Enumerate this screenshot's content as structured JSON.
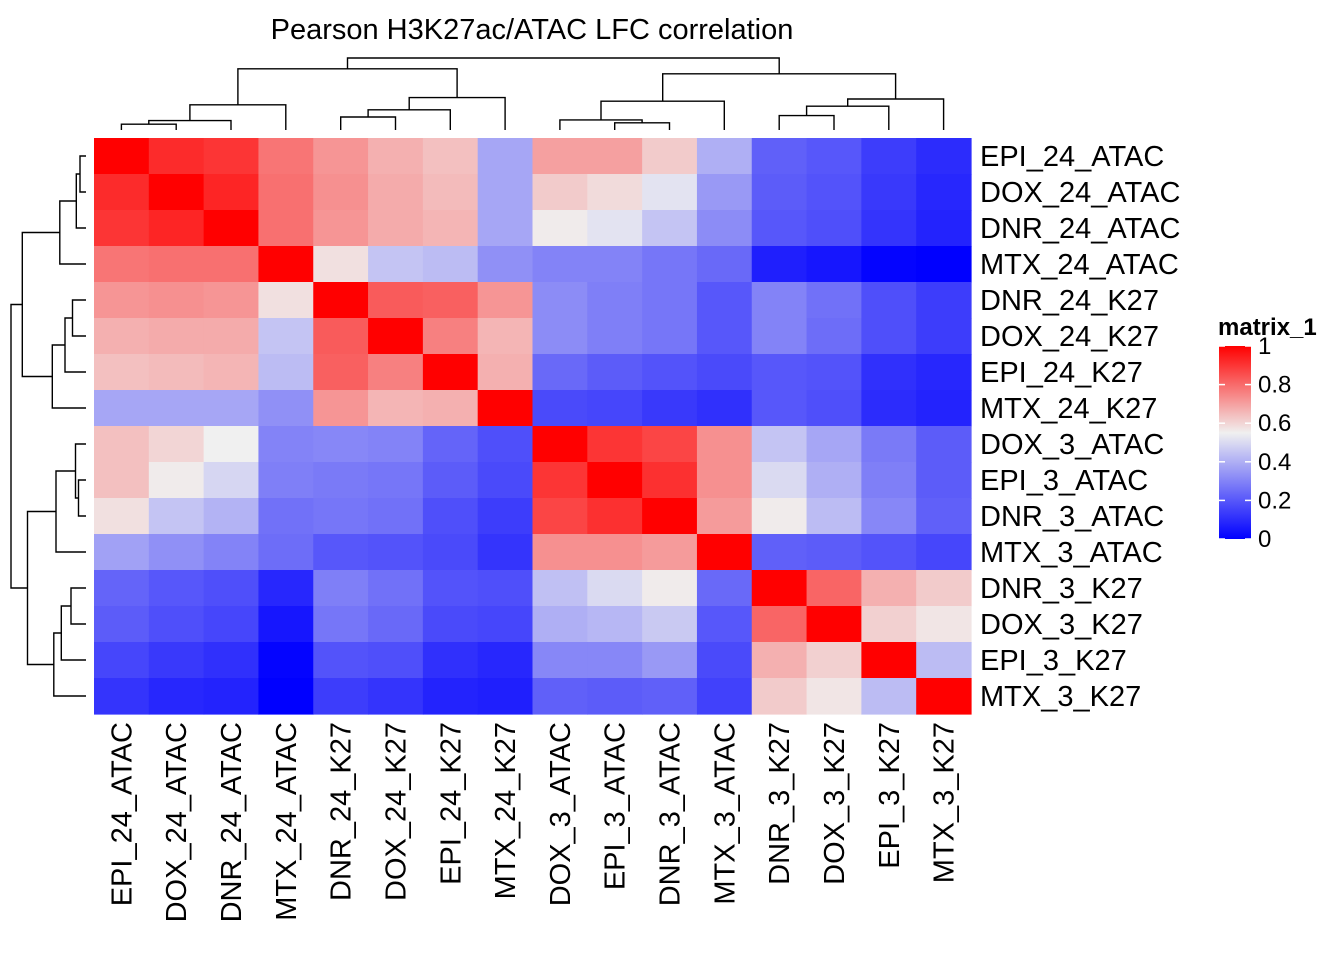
{
  "chart_data": {
    "type": "heatmap",
    "title": "Pearson H3K27ac/ATAC LFC correlation",
    "rows": [
      "EPI_24_ATAC",
      "DOX_24_ATAC",
      "DNR_24_ATAC",
      "MTX_24_ATAC",
      "DNR_24_K27",
      "DOX_24_K27",
      "EPI_24_K27",
      "MTX_24_K27",
      "DOX_3_ATAC",
      "EPI_3_ATAC",
      "DNR_3_ATAC",
      "MTX_3_ATAC",
      "DNR_3_K27",
      "DOX_3_K27",
      "EPI_3_K27",
      "MTX_3_K27"
    ],
    "columns": [
      "EPI_24_ATAC",
      "DOX_24_ATAC",
      "DNR_24_ATAC",
      "MTX_24_ATAC",
      "DNR_24_K27",
      "DOX_24_K27",
      "EPI_24_K27",
      "MTX_24_K27",
      "DOX_3_ATAC",
      "EPI_3_ATAC",
      "DNR_3_ATAC",
      "MTX_3_ATAC",
      "DNR_3_K27",
      "DOX_3_K27",
      "EPI_3_K27",
      "MTX_3_K27"
    ],
    "values": [
      [
        1.0,
        0.92,
        0.9,
        0.78,
        0.72,
        0.67,
        0.64,
        0.38,
        0.7,
        0.7,
        0.62,
        0.4,
        0.22,
        0.2,
        0.14,
        0.1
      ],
      [
        0.92,
        1.0,
        0.93,
        0.79,
        0.73,
        0.68,
        0.65,
        0.38,
        0.62,
        0.59,
        0.52,
        0.35,
        0.21,
        0.19,
        0.13,
        0.09
      ],
      [
        0.9,
        0.93,
        1.0,
        0.79,
        0.72,
        0.68,
        0.66,
        0.38,
        0.56,
        0.52,
        0.45,
        0.32,
        0.2,
        0.18,
        0.12,
        0.08
      ],
      [
        0.78,
        0.79,
        0.79,
        1.0,
        0.58,
        0.45,
        0.43,
        0.33,
        0.3,
        0.3,
        0.27,
        0.24,
        0.07,
        0.05,
        0.01,
        0.0
      ],
      [
        0.72,
        0.73,
        0.72,
        0.58,
        1.0,
        0.83,
        0.82,
        0.72,
        0.32,
        0.29,
        0.27,
        0.2,
        0.3,
        0.26,
        0.18,
        0.14
      ],
      [
        0.67,
        0.68,
        0.68,
        0.45,
        0.83,
        1.0,
        0.76,
        0.66,
        0.32,
        0.29,
        0.27,
        0.2,
        0.3,
        0.25,
        0.18,
        0.14
      ],
      [
        0.64,
        0.65,
        0.66,
        0.43,
        0.82,
        0.76,
        1.0,
        0.67,
        0.24,
        0.21,
        0.19,
        0.17,
        0.2,
        0.19,
        0.11,
        0.09
      ],
      [
        0.38,
        0.38,
        0.38,
        0.33,
        0.72,
        0.66,
        0.67,
        1.0,
        0.17,
        0.16,
        0.13,
        0.11,
        0.2,
        0.18,
        0.1,
        0.08
      ],
      [
        0.64,
        0.6,
        0.55,
        0.3,
        0.31,
        0.3,
        0.23,
        0.18,
        1.0,
        0.9,
        0.87,
        0.73,
        0.45,
        0.38,
        0.28,
        0.21
      ],
      [
        0.64,
        0.56,
        0.49,
        0.29,
        0.28,
        0.27,
        0.21,
        0.17,
        0.9,
        1.0,
        0.91,
        0.73,
        0.5,
        0.4,
        0.29,
        0.21
      ],
      [
        0.58,
        0.45,
        0.41,
        0.26,
        0.27,
        0.26,
        0.18,
        0.14,
        0.87,
        0.91,
        1.0,
        0.71,
        0.56,
        0.43,
        0.31,
        0.22
      ],
      [
        0.37,
        0.33,
        0.3,
        0.25,
        0.2,
        0.19,
        0.17,
        0.12,
        0.73,
        0.73,
        0.71,
        1.0,
        0.22,
        0.21,
        0.19,
        0.16
      ],
      [
        0.23,
        0.2,
        0.18,
        0.09,
        0.29,
        0.26,
        0.19,
        0.18,
        0.44,
        0.5,
        0.56,
        0.24,
        1.0,
        0.81,
        0.67,
        0.62
      ],
      [
        0.21,
        0.18,
        0.16,
        0.05,
        0.27,
        0.24,
        0.17,
        0.16,
        0.4,
        0.42,
        0.46,
        0.2,
        0.81,
        1.0,
        0.61,
        0.57
      ],
      [
        0.16,
        0.13,
        0.11,
        0.01,
        0.19,
        0.18,
        0.11,
        0.09,
        0.31,
        0.31,
        0.35,
        0.17,
        0.67,
        0.61,
        1.0,
        0.43
      ],
      [
        0.12,
        0.09,
        0.08,
        0.0,
        0.14,
        0.12,
        0.08,
        0.07,
        0.22,
        0.21,
        0.22,
        0.15,
        0.62,
        0.57,
        0.43,
        1.0
      ]
    ],
    "legend": {
      "title": "matrix_1",
      "ticks": [
        "0",
        "0.2",
        "0.4",
        "0.6",
        "0.8",
        "1"
      ],
      "tick_values": [
        0,
        0.2,
        0.4,
        0.6,
        0.8,
        1
      ],
      "colors": {
        "low": "#0000ff",
        "mid": "#f0f0f0",
        "high": "#ff0000"
      },
      "mid_value": 0.55,
      "placement": "right"
    },
    "dendrogram": {
      "linkage": [
        [
          0,
          1,
          0.08
        ],
        [
          2,
          16,
          0.13
        ],
        [
          3,
          17,
          0.35
        ],
        [
          4,
          5,
          0.18
        ],
        [
          6,
          19,
          0.28
        ],
        [
          7,
          20,
          0.45
        ],
        [
          18,
          21,
          0.85
        ],
        [
          9,
          10,
          0.1
        ],
        [
          8,
          23,
          0.14
        ],
        [
          11,
          24,
          0.4
        ],
        [
          12,
          13,
          0.2
        ],
        [
          14,
          26,
          0.33
        ],
        [
          15,
          27,
          0.43
        ],
        [
          25,
          28,
          0.78
        ],
        [
          22,
          29,
          1.0
        ]
      ]
    }
  }
}
